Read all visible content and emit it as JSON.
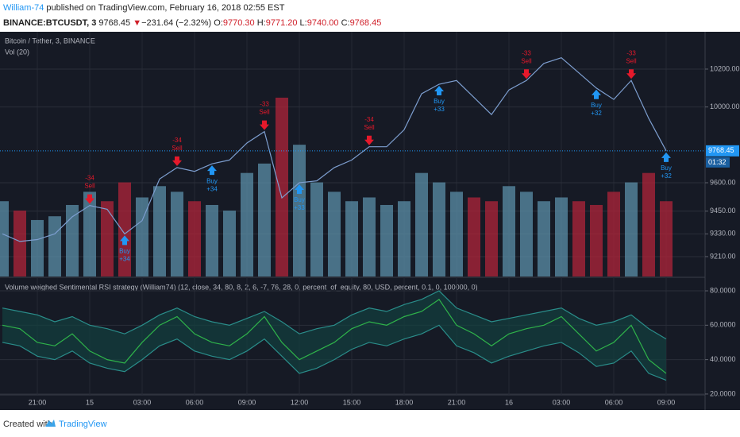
{
  "header": {
    "publisher": "William-74",
    "published_text": "published on TradingView.com, February 16, 2018 02:55 EST",
    "symbol": "BINANCE:BTCUSDT, 3",
    "last": "9768.45",
    "change_arrow": "▼",
    "change": "−231.64 (−2.32%)",
    "open_label": "O:",
    "open": "9770.30",
    "high_label": "H:",
    "high": "9771.20",
    "low_label": "L:",
    "low": "9740.00",
    "close_label": "C:",
    "close": "9768.45"
  },
  "footer": {
    "created_with": "Created with",
    "brand": "TradingView"
  },
  "chart_data": [
    {
      "type": "line",
      "title": "Bitcoin / Tether, 3, BINANCE",
      "subtitle": "Vol (20)",
      "categories": [
        null,
        null,
        "21:00",
        null,
        null,
        "15",
        null,
        null,
        "03:00",
        null,
        null,
        "06:00",
        null,
        null,
        "09:00",
        null,
        null,
        "12:00",
        null,
        null,
        "15:00",
        null,
        null,
        "18:00",
        null,
        null,
        "21:00",
        null,
        null,
        "16",
        null,
        null,
        "03:00",
        null,
        null,
        "06:00",
        null,
        null,
        "09:00"
      ],
      "values": [
        9330,
        9290,
        9300,
        9330,
        9420,
        9480,
        9460,
        9330,
        9400,
        9620,
        9680,
        9660,
        9700,
        9720,
        9810,
        9870,
        9520,
        9600,
        9610,
        9680,
        9720,
        9790,
        9790,
        9880,
        10070,
        10120,
        10140,
        10050,
        9960,
        10090,
        10140,
        10230,
        10260,
        10180,
        10100,
        10040,
        10140,
        9940,
        9768.45
      ],
      "color": "#7d9ecf",
      "ylim": [
        9105,
        10397
      ],
      "yticks": [
        {
          "value": 10200,
          "label": "10200.00"
        },
        {
          "value": 10000,
          "label": "10000.00"
        },
        {
          "value": 9600,
          "label": "9600.00"
        },
        {
          "value": 9450,
          "label": "9450.00"
        },
        {
          "value": 9330,
          "label": "9330.00"
        },
        {
          "value": 9210,
          "label": "9210.00"
        }
      ],
      "last_price": 9768.45,
      "countdown": "01:32",
      "grid": true,
      "volume": {
        "values": [
          40,
          35,
          30,
          32,
          38,
          45,
          40,
          50,
          42,
          48,
          45,
          40,
          38,
          35,
          55,
          60,
          95,
          70,
          50,
          45,
          40,
          42,
          38,
          40,
          55,
          50,
          45,
          42,
          40,
          48,
          45,
          40,
          42,
          40,
          38,
          45,
          50,
          55,
          40
        ],
        "ylim": [
          0,
          130
        ],
        "up_color": "#5b8fa8",
        "down_color": "#b0243a"
      },
      "signals": {
        "sell_label": "Sell",
        "buy_label": "Buy",
        "sell_color": "#e5192b",
        "buy_color": "#2196f3",
        "sell": [
          null,
          null,
          null,
          null,
          null,
          9480,
          null,
          null,
          null,
          null,
          9680,
          null,
          null,
          null,
          null,
          9870,
          null,
          null,
          null,
          null,
          null,
          9790,
          null,
          null,
          null,
          null,
          null,
          null,
          null,
          null,
          10140,
          null,
          null,
          null,
          null,
          null,
          10140,
          null,
          null
        ],
        "sell_qty": [
          null,
          null,
          null,
          null,
          null,
          "-34",
          null,
          null,
          null,
          null,
          "-34",
          null,
          null,
          null,
          null,
          "-33",
          null,
          null,
          null,
          null,
          null,
          "-34",
          null,
          null,
          null,
          null,
          null,
          null,
          null,
          null,
          "-33",
          null,
          null,
          null,
          null,
          null,
          "-33",
          null,
          null
        ],
        "buy": [
          null,
          null,
          null,
          null,
          null,
          null,
          null,
          9330,
          null,
          null,
          null,
          null,
          9700,
          null,
          null,
          null,
          null,
          9600,
          null,
          null,
          null,
          null,
          null,
          null,
          null,
          10120,
          null,
          null,
          null,
          null,
          null,
          null,
          null,
          null,
          10100,
          null,
          null,
          null,
          9768.45
        ],
        "buy_qty": [
          null,
          null,
          null,
          null,
          null,
          null,
          null,
          "+34",
          null,
          null,
          null,
          null,
          "+34",
          null,
          null,
          null,
          null,
          "+33",
          null,
          null,
          null,
          null,
          null,
          null,
          null,
          "+33",
          null,
          null,
          null,
          null,
          null,
          null,
          null,
          null,
          "+32",
          null,
          null,
          null,
          "+32"
        ]
      }
    },
    {
      "type": "band",
      "title": "Volume weighed Sentimental RSI strategy (William74) (12, close, 34, 80, 8, 2, 6, -7, 76, 28, 0, percent_of_equity, 80, USD, percent, 0.1, 0, 100000, 0)",
      "ylim": [
        19.5,
        87.4
      ],
      "yticks": [
        {
          "value": 80,
          "label": "80.0000"
        },
        {
          "value": 60,
          "label": "60.0000"
        },
        {
          "value": 40,
          "label": "40.0000"
        },
        {
          "value": 20,
          "label": "20.0000"
        }
      ],
      "fill": "#12403f",
      "series": [
        {
          "color": "#2a8d8a",
          "values": [
            70,
            68,
            66,
            62,
            65,
            60,
            58,
            55,
            60,
            66,
            70,
            65,
            62,
            60,
            64,
            68,
            62,
            55,
            58,
            60,
            66,
            70,
            68,
            72,
            75,
            80,
            70,
            66,
            62,
            64,
            66,
            68,
            70,
            64,
            60,
            62,
            66,
            58,
            52
          ]
        },
        {
          "color": "#2fb34a",
          "values": [
            60,
            58,
            50,
            48,
            55,
            45,
            40,
            38,
            50,
            60,
            65,
            55,
            50,
            48,
            55,
            65,
            50,
            40,
            45,
            50,
            58,
            62,
            60,
            65,
            68,
            75,
            60,
            55,
            48,
            55,
            58,
            60,
            65,
            55,
            45,
            50,
            60,
            40,
            32
          ]
        },
        {
          "color": "#2a8d8a",
          "values": [
            50,
            48,
            42,
            40,
            45,
            38,
            35,
            33,
            40,
            48,
            52,
            45,
            42,
            40,
            45,
            52,
            42,
            32,
            35,
            40,
            46,
            50,
            48,
            52,
            55,
            60,
            48,
            44,
            38,
            42,
            45,
            48,
            50,
            44,
            36,
            38,
            45,
            32,
            28
          ]
        }
      ]
    }
  ]
}
